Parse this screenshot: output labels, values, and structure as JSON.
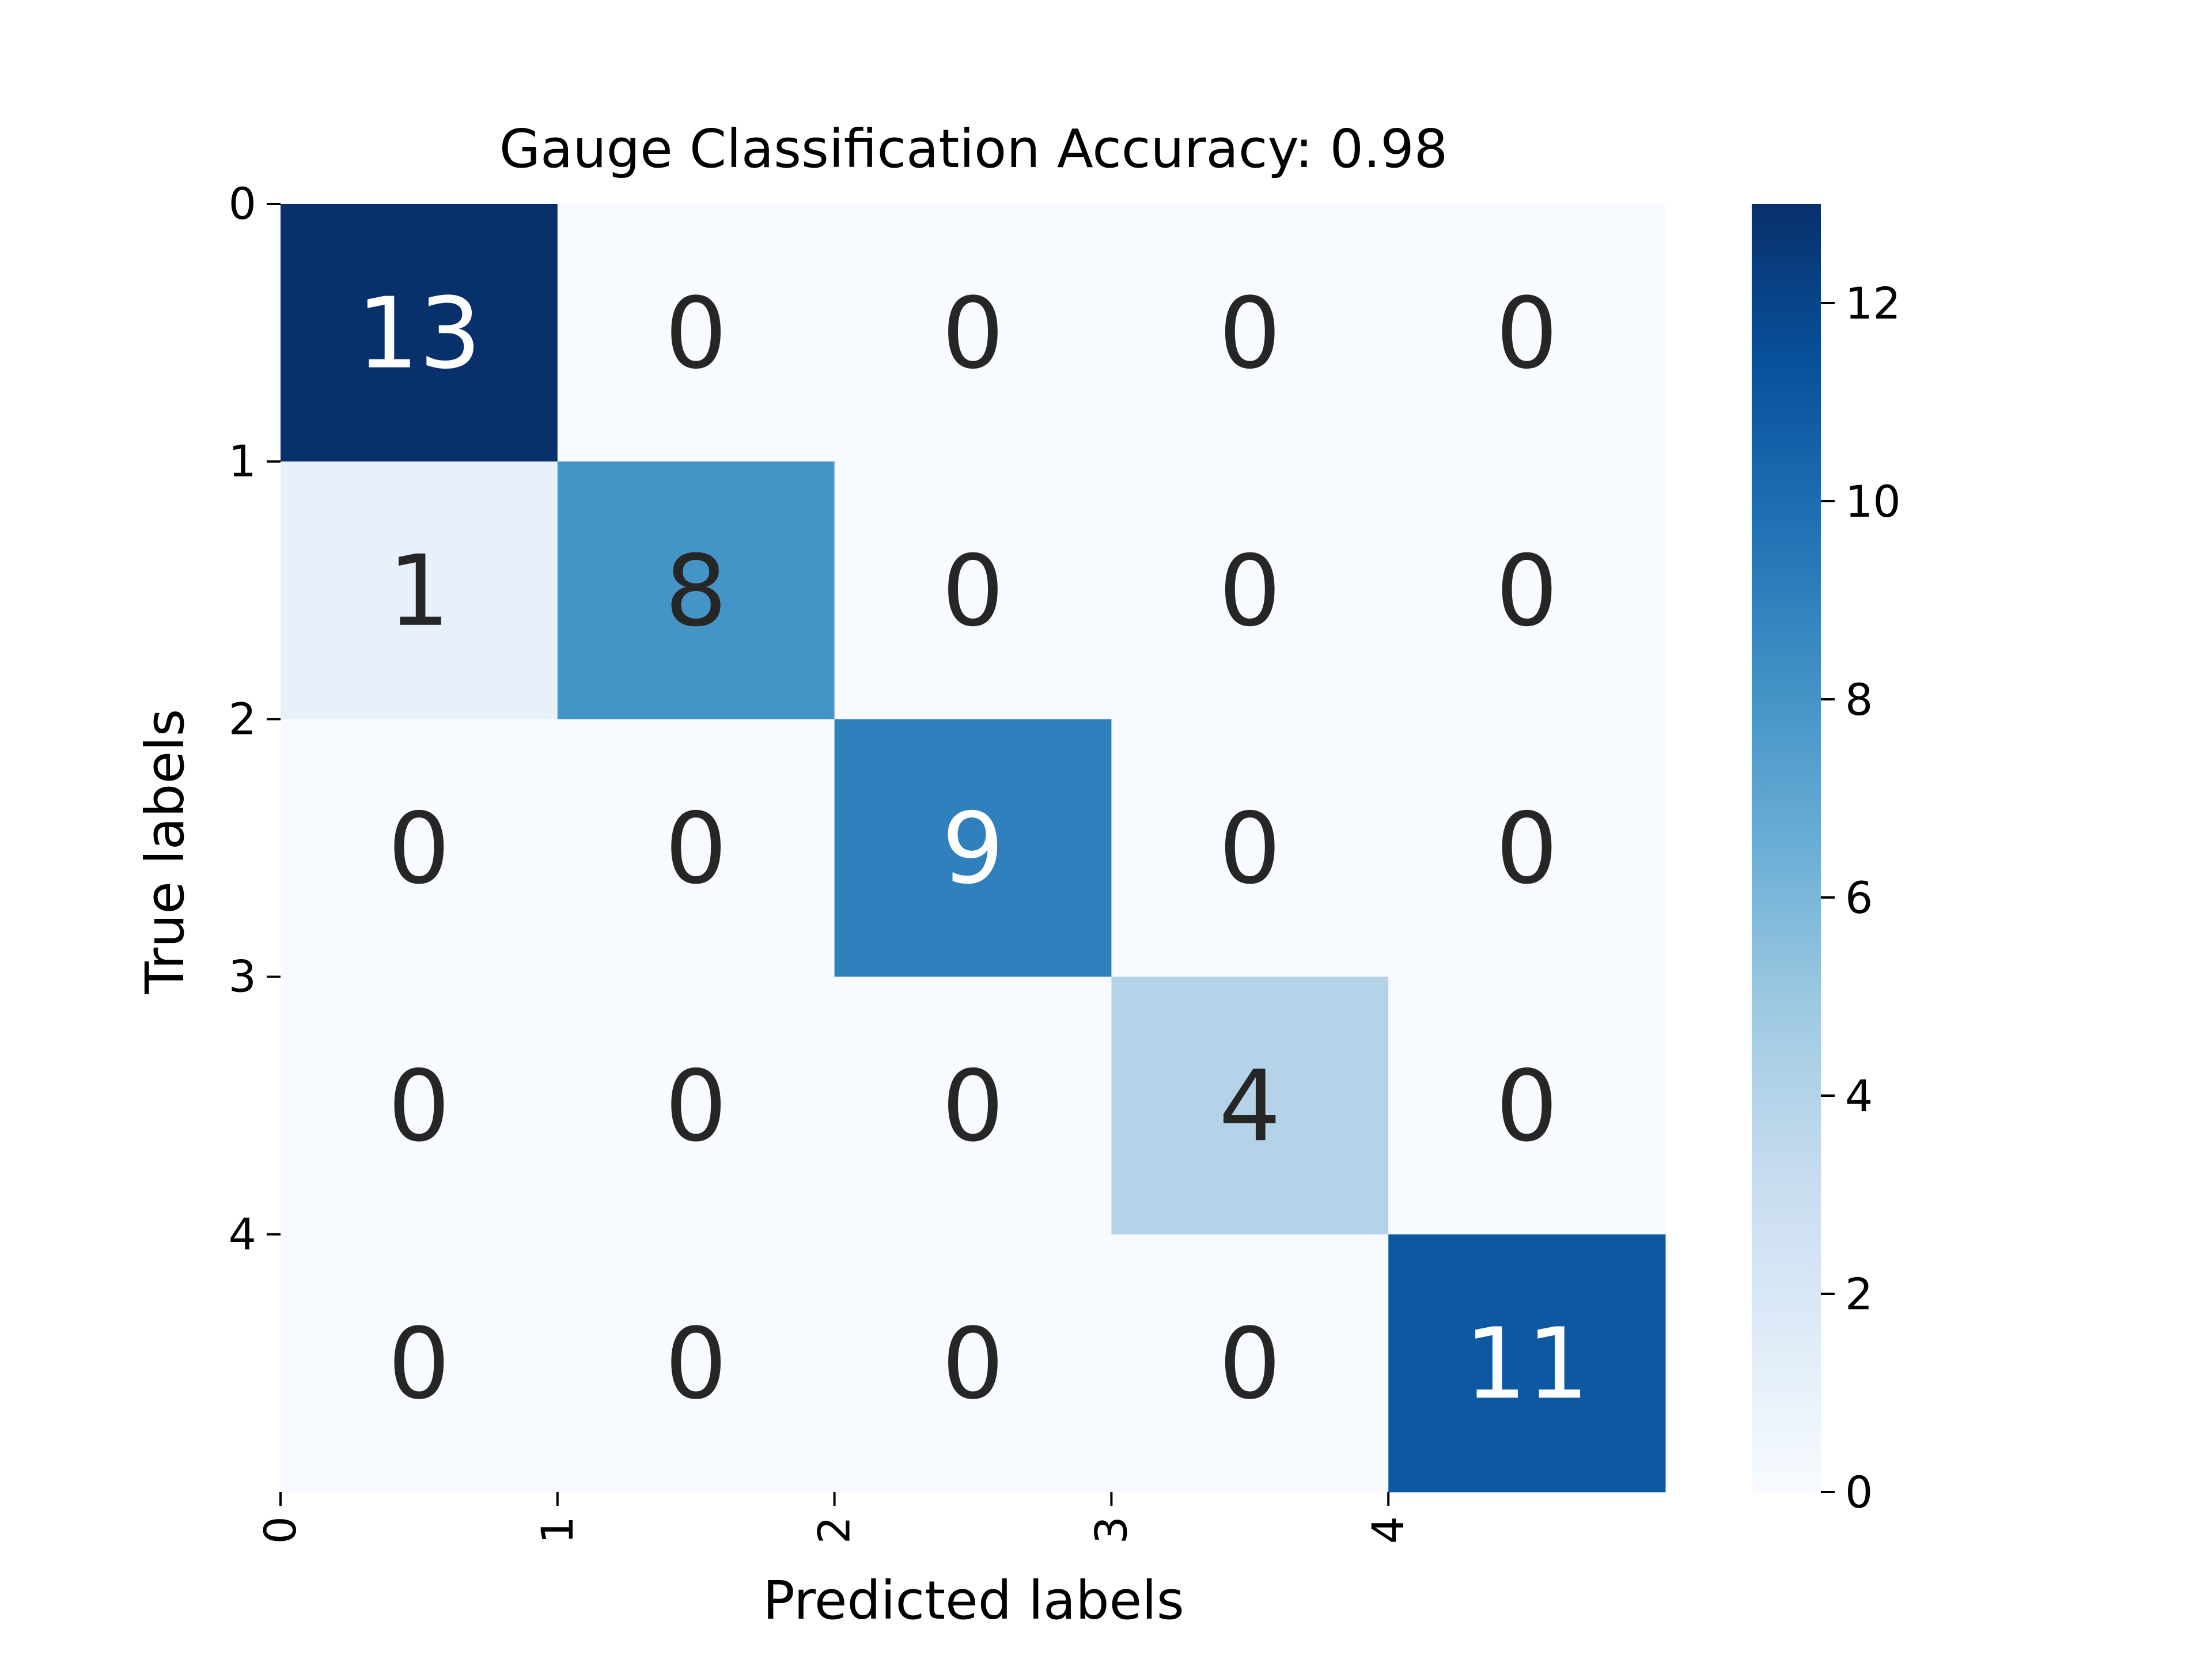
{
  "chart_data": {
    "type": "heatmap",
    "title": "Gauge Classification Accuracy: 0.98",
    "xlabel": "Predicted labels",
    "ylabel": "True labels",
    "x_tick_labels": [
      "0",
      "1",
      "2",
      "3",
      "4"
    ],
    "y_tick_labels": [
      "0",
      "1",
      "2",
      "3",
      "4"
    ],
    "matrix": [
      [
        13,
        0,
        0,
        0,
        0
      ],
      [
        1,
        8,
        0,
        0,
        0
      ],
      [
        0,
        0,
        9,
        0,
        0
      ],
      [
        0,
        0,
        0,
        4,
        0
      ],
      [
        0,
        0,
        0,
        0,
        11
      ]
    ],
    "colormap": "Blues",
    "colormap_stops": [
      "#f7fbff",
      "#deebf7",
      "#c6dbef",
      "#9ecae1",
      "#6baed6",
      "#4292c6",
      "#2171b5",
      "#08519c",
      "#08306b"
    ],
    "vmin": 0,
    "vmax": 13,
    "colorbar_ticks": [
      0,
      2,
      4,
      6,
      8,
      10,
      12
    ],
    "colorbar_tick_labels": [
      "0",
      "2",
      "4",
      "6",
      "8",
      "10",
      "12"
    ],
    "annotation_dark_color": "#262626",
    "annotation_light_color": "#ffffff",
    "grid": false
  }
}
